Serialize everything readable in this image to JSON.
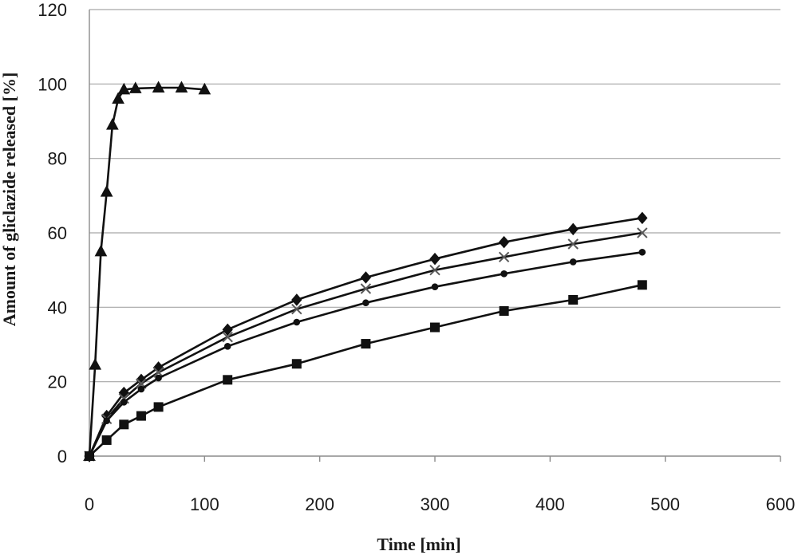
{
  "chart_data": {
    "type": "line",
    "title": "",
    "xlabel": "Time [min]",
    "ylabel": "Amount of gliclazide released [%]",
    "xlim": [
      0,
      600
    ],
    "ylim": [
      0,
      120
    ],
    "x_ticks": [
      0,
      100,
      200,
      300,
      400,
      500,
      600
    ],
    "y_ticks": [
      0,
      20,
      40,
      60,
      80,
      100,
      120
    ],
    "grid": "horizontal",
    "legend": "none",
    "series": [
      {
        "marker": "triangle",
        "x": [
          0,
          5,
          10,
          15,
          20,
          25,
          30,
          40,
          60,
          80,
          100
        ],
        "y": [
          0,
          24.5,
          55,
          71,
          89,
          96,
          98.5,
          98.8,
          99,
          99,
          98.5
        ]
      },
      {
        "marker": "diamond",
        "x": [
          0,
          15,
          30,
          45,
          60,
          120,
          180,
          240,
          300,
          360,
          420,
          480
        ],
        "y": [
          0,
          10.8,
          17,
          20.5,
          23.8,
          34,
          42,
          48,
          53,
          57.5,
          61,
          64
        ]
      },
      {
        "marker": "x",
        "x": [
          0,
          15,
          30,
          45,
          60,
          120,
          180,
          240,
          300,
          360,
          420,
          480
        ],
        "y": [
          0,
          10,
          15.5,
          19.5,
          22.5,
          32,
          39.5,
          45,
          50,
          53.5,
          57,
          60
        ]
      },
      {
        "marker": "circle",
        "x": [
          0,
          15,
          30,
          45,
          60,
          120,
          180,
          240,
          300,
          360,
          420,
          480
        ],
        "y": [
          0,
          9.5,
          14.5,
          18,
          21,
          29.5,
          36,
          41.2,
          45.5,
          49,
          52.2,
          54.8
        ]
      },
      {
        "marker": "square",
        "x": [
          0,
          15,
          30,
          45,
          60,
          120,
          180,
          240,
          300,
          360,
          420,
          480
        ],
        "y": [
          0,
          4.3,
          8.5,
          10.8,
          13.2,
          20.5,
          24.8,
          30.2,
          34.6,
          39,
          42,
          46
        ]
      }
    ]
  }
}
